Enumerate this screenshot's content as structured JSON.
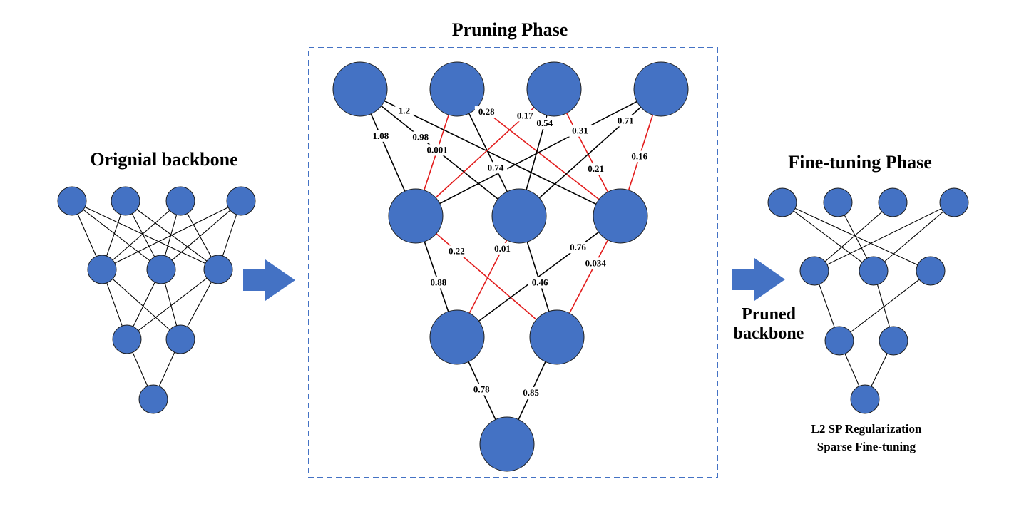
{
  "titles": {
    "original": "Orignial backbone",
    "pruning": "Pruning Phase",
    "finetune": "Fine-tuning Phase",
    "pruned": [
      "Pruned",
      "backbone"
    ],
    "notes": [
      "L2 SP Regularization",
      "Sparse Fine-tuning"
    ]
  },
  "colors": {
    "node": "#4472C4",
    "pruned_edge": "#e21c1c",
    "kept_edge": "#000000",
    "frame": "#4472C4"
  },
  "weights": {
    "layer1_to_layer2": [
      {
        "from": 0,
        "to": 0,
        "w": "1.08",
        "pruned": false
      },
      {
        "from": 0,
        "to": 2,
        "w": "1.2",
        "pruned": false
      },
      {
        "from": 0,
        "to": 1,
        "w": "0.98",
        "pruned": false
      },
      {
        "from": 1,
        "to": 0,
        "w": "0.001",
        "pruned": true
      },
      {
        "from": 1,
        "to": 2,
        "w": "0.28",
        "pruned": true
      },
      {
        "from": 1,
        "to": 1,
        "w": "0.74",
        "pruned": false
      },
      {
        "from": 2,
        "to": 0,
        "w": "0.17",
        "pruned": true
      },
      {
        "from": 2,
        "to": 1,
        "w": "0.54",
        "pruned": false
      },
      {
        "from": 2,
        "to": 2,
        "w": "0.21",
        "pruned": true
      },
      {
        "from": 3,
        "to": 0,
        "w": "0.31",
        "pruned": false
      },
      {
        "from": 3,
        "to": 1,
        "w": "0.71",
        "pruned": false
      },
      {
        "from": 3,
        "to": 2,
        "w": "0.16",
        "pruned": true
      }
    ],
    "layer2_to_layer3": [
      {
        "from": 0,
        "to": 0,
        "w": "0.88",
        "pruned": false
      },
      {
        "from": 0,
        "to": 1,
        "w": "0.22",
        "pruned": true
      },
      {
        "from": 1,
        "to": 0,
        "w": "0.01",
        "pruned": true
      },
      {
        "from": 1,
        "to": 1,
        "w": "0.46",
        "pruned": false
      },
      {
        "from": 2,
        "to": 0,
        "w": "0.76",
        "pruned": false
      },
      {
        "from": 2,
        "to": 1,
        "w": "0.034",
        "pruned": true
      }
    ],
    "layer3_to_layer4": [
      {
        "from": 0,
        "to": 0,
        "w": "0.78",
        "pruned": false
      },
      {
        "from": 1,
        "to": 0,
        "w": "0.85",
        "pruned": false
      }
    ]
  }
}
